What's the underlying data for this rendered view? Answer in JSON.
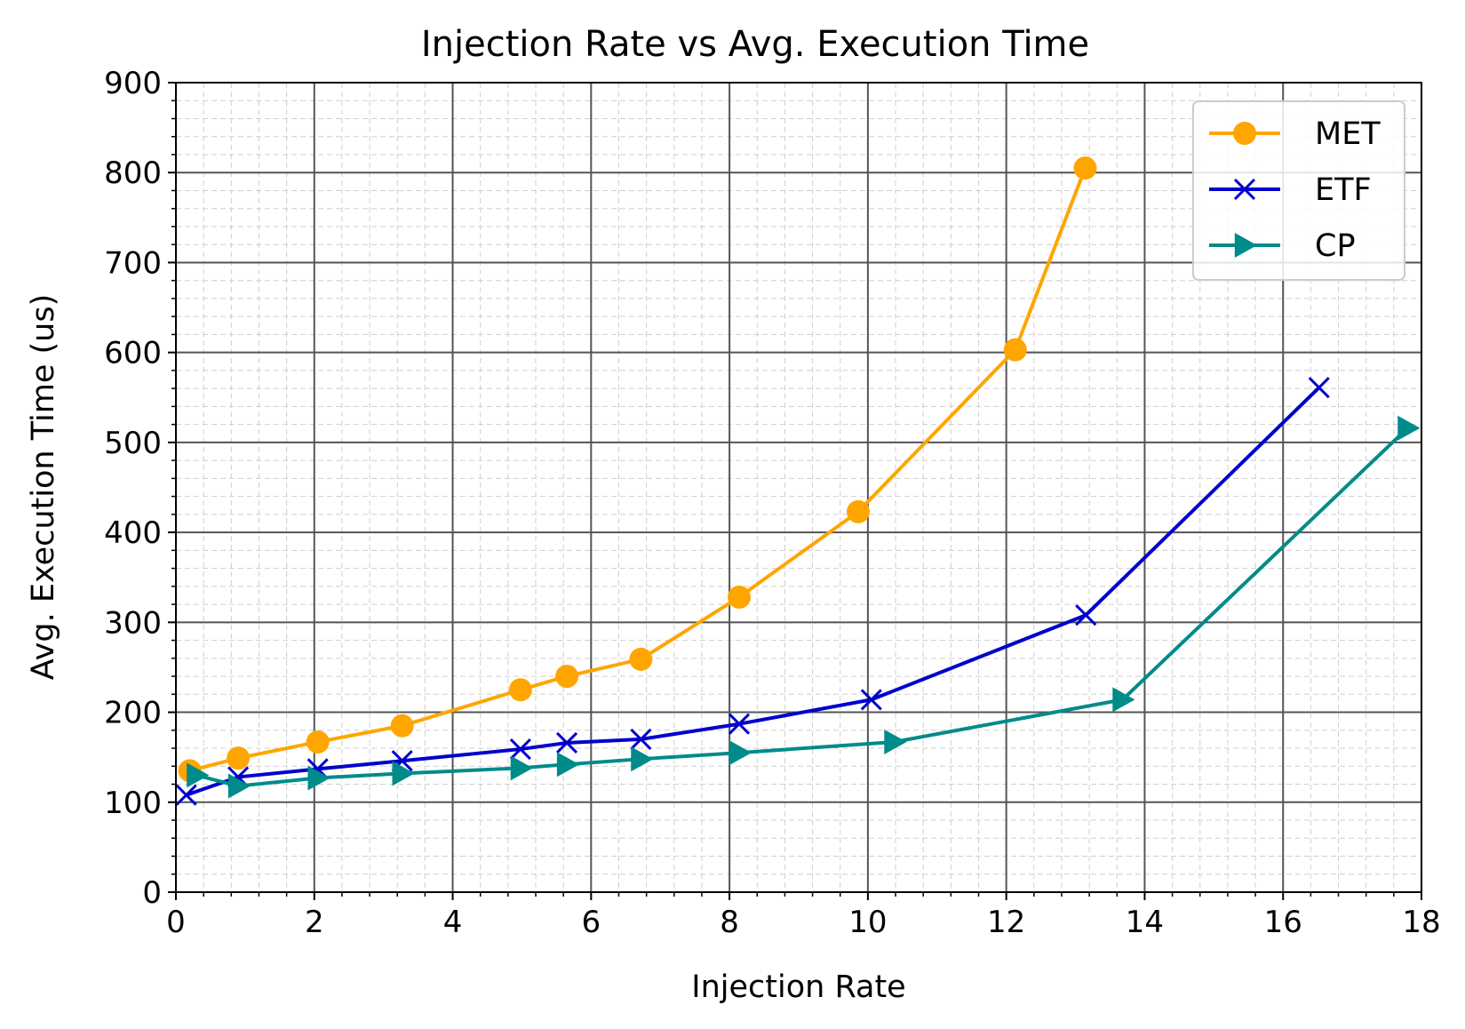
{
  "chart_data": {
    "type": "line",
    "title": "Injection Rate vs Avg. Execution Time",
    "xlabel": "Injection Rate",
    "ylabel": "Avg. Execution Time (us)",
    "xlim": [
      0,
      18
    ],
    "ylim": [
      0,
      900
    ],
    "x_ticks": [
      "0",
      "2",
      "4",
      "6",
      "8",
      "10",
      "12",
      "14",
      "16",
      "18"
    ],
    "y_ticks": [
      "0",
      "100",
      "200",
      "300",
      "400",
      "500",
      "600",
      "700",
      "800",
      "900"
    ],
    "grid": "major and minor",
    "legend_position": "top-right",
    "series": [
      {
        "name": "MET",
        "color": "#FFA500",
        "marker": "circle",
        "x": [
          0.2,
          0.9,
          2.05,
          3.27,
          4.98,
          5.65,
          6.72,
          8.14,
          9.86,
          12.13,
          13.14
        ],
        "y": [
          135,
          149,
          167,
          185,
          225,
          240,
          259,
          328,
          423,
          603,
          805
        ]
      },
      {
        "name": "ETF",
        "color": "#0000CD",
        "marker": "x",
        "x": [
          0.15,
          0.9,
          2.05,
          3.27,
          4.98,
          5.65,
          6.72,
          8.14,
          10.05,
          13.15,
          16.52
        ],
        "y": [
          108,
          128,
          137,
          146,
          159,
          166,
          170,
          187,
          214,
          308,
          561
        ]
      },
      {
        "name": "CP",
        "color": "#008B8B",
        "marker": "triangle-right",
        "x": [
          0.3,
          0.9,
          2.05,
          3.27,
          4.98,
          5.65,
          6.72,
          8.14,
          10.38,
          13.68,
          17.8
        ],
        "y": [
          130,
          118,
          127,
          132,
          138,
          142,
          148,
          155,
          167,
          214,
          516
        ]
      }
    ]
  }
}
